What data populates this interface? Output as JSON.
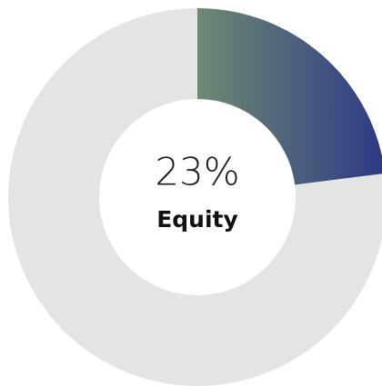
{
  "chart_data": {
    "type": "donut",
    "categories": [
      "Equity",
      null
    ],
    "values": [
      23,
      77
    ],
    "value_labels": [
      "23%",
      null
    ],
    "colors": [
      [
        "#6e8a73",
        "#2c3986"
      ],
      "#e4e4e4"
    ]
  }
}
